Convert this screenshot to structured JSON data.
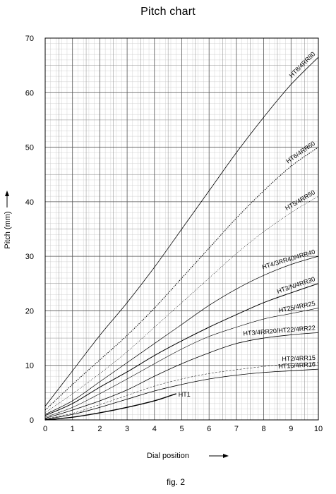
{
  "title": "Pitch chart",
  "caption": "fig. 2",
  "chart_data": {
    "type": "line",
    "title": "Pitch chart",
    "xlabel": "Dial position",
    "ylabel": "Pitch (mm)",
    "xlim": [
      0,
      10
    ],
    "ylim": [
      0,
      70
    ],
    "x_ticks": [
      0,
      1,
      2,
      3,
      4,
      5,
      6,
      7,
      8,
      9,
      10
    ],
    "y_ticks": [
      0,
      10,
      20,
      30,
      40,
      50,
      60,
      70
    ],
    "grid": true,
    "series": [
      {
        "name": "HT8/4RR80",
        "points": [
          [
            0,
            2.5
          ],
          [
            1,
            9
          ],
          [
            2,
            15.5
          ],
          [
            3,
            21.5
          ],
          [
            4,
            28
          ],
          [
            5,
            35
          ],
          [
            6,
            42
          ],
          [
            7,
            49
          ],
          [
            8,
            55.5
          ],
          [
            9,
            61.5
          ],
          [
            10,
            66.5
          ]
        ]
      },
      {
        "name": "HT6/4RR60",
        "points": [
          [
            0,
            1.8
          ],
          [
            1,
            6.5
          ],
          [
            2,
            11
          ],
          [
            3,
            15.5
          ],
          [
            4,
            20.5
          ],
          [
            5,
            26
          ],
          [
            6,
            31.5
          ],
          [
            7,
            37
          ],
          [
            8,
            42
          ],
          [
            9,
            46.5
          ],
          [
            10,
            50
          ]
        ]
      },
      {
        "name": "HT5/4RR50",
        "points": [
          [
            0,
            1.3
          ],
          [
            1,
            4.8
          ],
          [
            2,
            8.5
          ],
          [
            3,
            12.5
          ],
          [
            4,
            17
          ],
          [
            5,
            21.5
          ],
          [
            6,
            26
          ],
          [
            7,
            30.5
          ],
          [
            8,
            34.5
          ],
          [
            9,
            38
          ],
          [
            10,
            41
          ]
        ]
      },
      {
        "name": "HT4/3RR40/4RR40",
        "points": [
          [
            0,
            1
          ],
          [
            1,
            3.5
          ],
          [
            2,
            7
          ],
          [
            3,
            10.5
          ],
          [
            4,
            14
          ],
          [
            5,
            17.5
          ],
          [
            6,
            21
          ],
          [
            7,
            24
          ],
          [
            8,
            26.5
          ],
          [
            9,
            28.5
          ],
          [
            10,
            30
          ]
        ]
      },
      {
        "name": "HT3/N/4RR30",
        "points": [
          [
            0,
            0.8
          ],
          [
            1,
            3
          ],
          [
            2,
            6
          ],
          [
            3,
            8.8
          ],
          [
            4,
            11.8
          ],
          [
            5,
            14.5
          ],
          [
            6,
            17
          ],
          [
            7,
            19.3
          ],
          [
            8,
            21.5
          ],
          [
            9,
            23.3
          ],
          [
            10,
            25
          ]
        ]
      },
      {
        "name": "HT25/4RR25",
        "points": [
          [
            0,
            0.5
          ],
          [
            1,
            2.3
          ],
          [
            2,
            4.8
          ],
          [
            3,
            7.5
          ],
          [
            4,
            10.3
          ],
          [
            5,
            13
          ],
          [
            6,
            15.3
          ],
          [
            7,
            17
          ],
          [
            8,
            18.5
          ],
          [
            9,
            19.5
          ],
          [
            10,
            20.5
          ]
        ]
      },
      {
        "name": "HT3/4RR20/HT22/4RR22",
        "points": [
          [
            0,
            0.3
          ],
          [
            1,
            1.8
          ],
          [
            2,
            3.5
          ],
          [
            3,
            5.5
          ],
          [
            4,
            8
          ],
          [
            5,
            10.3
          ],
          [
            6,
            12.3
          ],
          [
            7,
            14
          ],
          [
            8,
            15
          ],
          [
            9,
            15.6
          ],
          [
            10,
            16
          ]
        ]
      },
      {
        "name": "HT2/4RR15",
        "points": [
          [
            0,
            0.2
          ],
          [
            1,
            1.2
          ],
          [
            2,
            2.8
          ],
          [
            3,
            4.5
          ],
          [
            4,
            6.2
          ],
          [
            5,
            7.5
          ],
          [
            6,
            8.5
          ],
          [
            7,
            9.2
          ],
          [
            8,
            9.8
          ],
          [
            9,
            10.3
          ],
          [
            10,
            10.5
          ]
        ]
      },
      {
        "name": "HT16/4RR16",
        "points": [
          [
            0,
            0.1
          ],
          [
            1,
            1
          ],
          [
            2,
            2.3
          ],
          [
            3,
            3.8
          ],
          [
            4,
            5.3
          ],
          [
            5,
            6.5
          ],
          [
            6,
            7.5
          ],
          [
            7,
            8.2
          ],
          [
            8,
            8.7
          ],
          [
            9,
            9
          ],
          [
            10,
            9.3
          ]
        ]
      },
      {
        "name": "HT1",
        "points": [
          [
            0,
            0
          ],
          [
            1,
            0.5
          ],
          [
            2,
            1.3
          ],
          [
            3,
            2.3
          ],
          [
            4,
            3.5
          ],
          [
            4.5,
            4.3
          ],
          [
            4.8,
            4.8
          ]
        ]
      }
    ]
  }
}
